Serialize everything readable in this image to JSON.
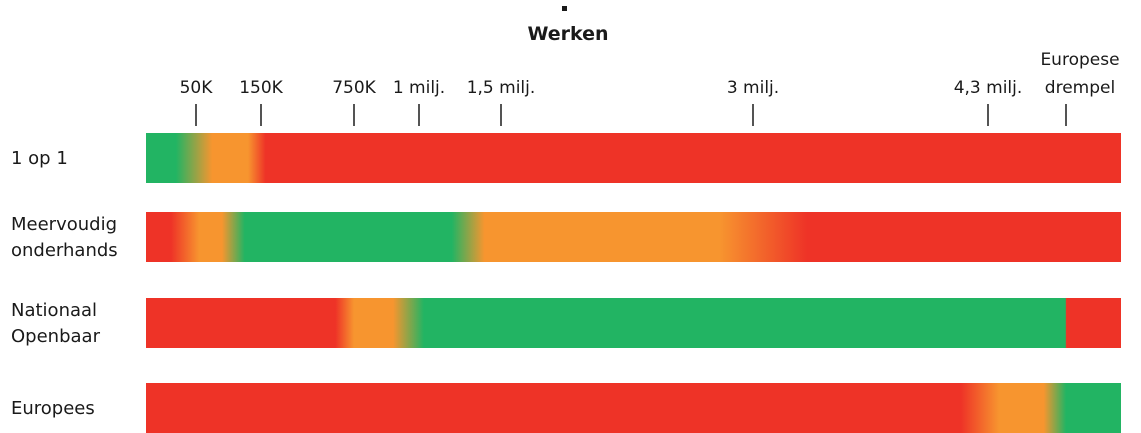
{
  "chart_data": {
    "type": "heatmap",
    "title": "Werken",
    "colors": {
      "green": "#22b463",
      "orange": "#f7952f",
      "red": "#ee3327"
    },
    "ticks": [
      {
        "label": "50K",
        "value": 50000
      },
      {
        "label": "150K",
        "value": 150000
      },
      {
        "label": "750K",
        "value": 750000
      },
      {
        "label": "1 milj.",
        "value": 1000000
      },
      {
        "label": "1,5 milj.",
        "value": 1500000
      },
      {
        "label": "3 milj.",
        "value": 3000000
      },
      {
        "label": "4,3 milj.",
        "value": 4300000
      },
      {
        "label": [
          "Europese",
          "drempel"
        ],
        "value": 5000000
      }
    ],
    "rows": [
      {
        "label": [
          "1 op 1"
        ],
        "stops": [
          {
            "value": 0,
            "color": "green"
          },
          {
            "value": 30000,
            "color": "green"
          },
          {
            "value": 75000,
            "color": "orange"
          },
          {
            "value": 130000,
            "color": "orange"
          },
          {
            "value": 180000,
            "color": "red"
          },
          {
            "value": 5800000,
            "color": "red"
          }
        ]
      },
      {
        "label": [
          "Meervoudig",
          "onderhands"
        ],
        "stops": [
          {
            "value": 0,
            "color": "red"
          },
          {
            "value": 25000,
            "color": "red"
          },
          {
            "value": 55000,
            "color": "orange"
          },
          {
            "value": 90000,
            "color": "orange"
          },
          {
            "value": 125000,
            "color": "green"
          },
          {
            "value": 1200000,
            "color": "green"
          },
          {
            "value": 1400000,
            "color": "orange"
          },
          {
            "value": 2800000,
            "color": "orange"
          },
          {
            "value": 3300000,
            "color": "red"
          },
          {
            "value": 5800000,
            "color": "red"
          }
        ]
      },
      {
        "label": [
          "Nationaal",
          "Openbaar"
        ],
        "stops": [
          {
            "value": 0,
            "color": "red"
          },
          {
            "value": 630000,
            "color": "red"
          },
          {
            "value": 750000,
            "color": "orange"
          },
          {
            "value": 900000,
            "color": "orange"
          },
          {
            "value": 1030000,
            "color": "green"
          },
          {
            "value": 4995000,
            "color": "green"
          },
          {
            "value": 5005000,
            "color": "red"
          },
          {
            "value": 5800000,
            "color": "red"
          }
        ]
      },
      {
        "label": [
          "Europees"
        ],
        "stops": [
          {
            "value": 0,
            "color": "red"
          },
          {
            "value": 4150000,
            "color": "red"
          },
          {
            "value": 4400000,
            "color": "orange"
          },
          {
            "value": 4800000,
            "color": "orange"
          },
          {
            "value": 5000000,
            "color": "green"
          },
          {
            "value": 5800000,
            "color": "green"
          }
        ]
      }
    ]
  }
}
